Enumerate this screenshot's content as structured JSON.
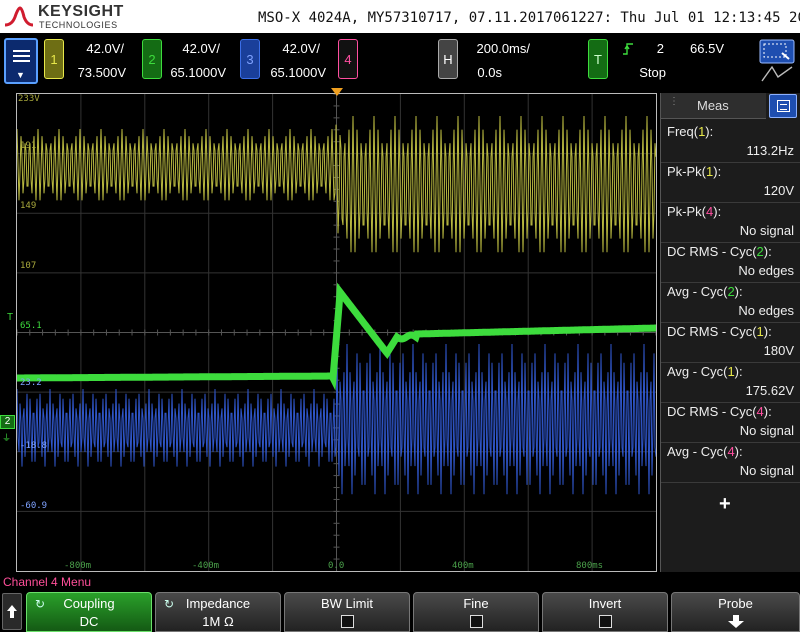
{
  "header": {
    "brand": "KEYSIGHT",
    "brand_sub": "TECHNOLOGIES",
    "device_info": "MSO-X 4024A, MY57310717, 07.11.2017061227: Thu Jul 01 12:13:45 2021"
  },
  "channels": [
    {
      "num": "1",
      "scale": "42.0V/",
      "offset": "73.500V",
      "color": "#e8e84a"
    },
    {
      "num": "2",
      "scale": "42.0V/",
      "offset": "65.1000V",
      "color": "#3ddc3d"
    },
    {
      "num": "3",
      "scale": "42.0V/",
      "offset": "65.1000V",
      "color": "#3b6fe8"
    },
    {
      "num": "4",
      "scale": "",
      "offset": "",
      "color": "#ff4fa0"
    }
  ],
  "horizontal": {
    "label": "H",
    "timebase": "200.0ms/",
    "delay": "0.0s"
  },
  "trigger": {
    "label": "T",
    "source": "2",
    "level": "66.5V",
    "state": "Stop"
  },
  "grid": {
    "ch1_labels": [
      "233V",
      "191",
      "149",
      "107"
    ],
    "ch2_level": "65.1",
    "ch3_labels": [
      "23.2",
      "-18.8",
      "-60.9"
    ],
    "ch2_marker": "2",
    "trig_marker": "T",
    "time_labels": [
      "-800m",
      "-400m",
      "0.0",
      "400m",
      "800ms"
    ]
  },
  "meas": {
    "tab_label": "Meas",
    "rows": [
      {
        "prefix": "Freq(",
        "ch": "1",
        "suffix": "):",
        "value": "113.2Hz",
        "color": "#e8e84a"
      },
      {
        "prefix": "Pk-Pk(",
        "ch": "1",
        "suffix": "):",
        "value": "120V",
        "color": "#e8e84a"
      },
      {
        "prefix": "Pk-Pk(",
        "ch": "4",
        "suffix": "):",
        "value": "No signal",
        "color": "#ff4fa0"
      },
      {
        "prefix": "DC RMS - Cyc(",
        "ch": "2",
        "suffix": "):",
        "value": "No edges",
        "color": "#3ddc3d"
      },
      {
        "prefix": "Avg - Cyc(",
        "ch": "2",
        "suffix": "):",
        "value": "No edges",
        "color": "#3ddc3d"
      },
      {
        "prefix": "DC RMS - Cyc(",
        "ch": "1",
        "suffix": "):",
        "value": "180V",
        "color": "#e8e84a"
      },
      {
        "prefix": "Avg - Cyc(",
        "ch": "1",
        "suffix": "):",
        "value": "175.62V",
        "color": "#e8e84a"
      },
      {
        "prefix": "DC RMS - Cyc(",
        "ch": "4",
        "suffix": "):",
        "value": "No signal",
        "color": "#ff4fa0"
      },
      {
        "prefix": "Avg - Cyc(",
        "ch": "4",
        "suffix": "):",
        "value": "No signal",
        "color": "#ff4fa0"
      }
    ],
    "add_label": "+"
  },
  "menu_title": "Channel 4 Menu",
  "softkeys": [
    {
      "label": "Coupling",
      "value": "DC",
      "active": true,
      "icon": "rotate-icon"
    },
    {
      "label": "Impedance",
      "value": "1M Ω",
      "active": false,
      "icon": "rotate-icon"
    },
    {
      "label": "BW Limit",
      "value": "",
      "checkbox": true
    },
    {
      "label": "Fine",
      "value": "",
      "checkbox": true
    },
    {
      "label": "Invert",
      "value": "",
      "checkbox": true
    },
    {
      "label": "Probe",
      "value": "",
      "arrow": true
    }
  ]
}
